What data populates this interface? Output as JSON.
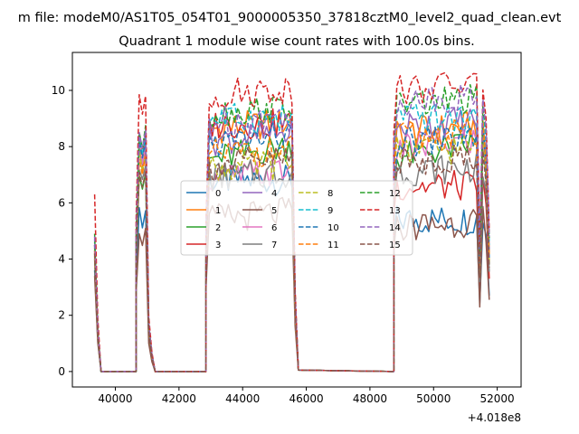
{
  "suptitle": "m file: modeM0/AS1T05_054T01_9000005350_37818cztM0_level2_quad_clean.evt",
  "chart_data": {
    "type": "line",
    "title": "Quadrant 1 module wise count rates with 100.0s bins.",
    "xlabel": "",
    "ylabel": "",
    "x_offset_label": "+4.018e8",
    "xlim": [
      38650,
      52750
    ],
    "ylim": [
      -0.55,
      11.35
    ],
    "xticks": [
      40000,
      42000,
      44000,
      46000,
      48000,
      50000,
      52000
    ],
    "yticks": [
      0,
      2,
      4,
      6,
      8,
      10
    ],
    "grid": false,
    "legend": {
      "placement": "center",
      "ncol": 4
    },
    "x_segments": [
      [
        39350,
        39450,
        39550
      ],
      [
        40650,
        40750,
        40850,
        40950,
        41050,
        41150
      ],
      [
        42850,
        42950,
        43050,
        43150,
        43250,
        43350,
        43450,
        43550,
        43650,
        43750,
        43850,
        43950,
        44050,
        44150,
        44250,
        44350,
        44450,
        44550,
        44650,
        44750,
        44850,
        44950,
        45050,
        45150,
        45250,
        45350,
        45450,
        45550,
        45650
      ],
      [
        48750,
        48850,
        48950,
        49050,
        49150,
        49250,
        49350,
        49450,
        49550,
        49650,
        49750,
        49850,
        49950,
        50050,
        50150,
        50250,
        50350,
        50450,
        50550,
        50650,
        50750,
        50850,
        50950,
        51050,
        51150,
        51250,
        51350,
        51450,
        51550,
        51650,
        51750
      ]
    ],
    "series": [
      {
        "name": "0",
        "color": "#1f77b4",
        "dash": "solid",
        "levels": [
          3.6,
          5.7,
          6.8,
          5.4
        ],
        "seg3_rise": 0.0
      },
      {
        "name": "1",
        "color": "#ff7f0e",
        "dash": "solid",
        "levels": [
          4.2,
          7.9,
          8.6,
          8.5
        ],
        "seg3_rise": 0.3
      },
      {
        "name": "2",
        "color": "#2ca02c",
        "dash": "solid",
        "levels": [
          4.0,
          7.1,
          7.5,
          7.6
        ],
        "seg3_rise": 0.6
      },
      {
        "name": "3",
        "color": "#d62728",
        "dash": "solid",
        "levels": [
          4.5,
          8.3,
          8.8,
          6.6
        ],
        "seg3_rise": 0.0
      },
      {
        "name": "4",
        "color": "#9467bd",
        "dash": "solid",
        "levels": [
          4.3,
          8.0,
          8.2,
          8.7
        ],
        "seg3_rise": 0.3
      },
      {
        "name": "5",
        "color": "#8c564b",
        "dash": "solid",
        "levels": [
          3.4,
          5.0,
          5.4,
          5.1
        ],
        "seg3_rise": 0.3
      },
      {
        "name": "6",
        "color": "#e377c2",
        "dash": "solid",
        "levels": [
          4.6,
          8.2,
          6.8,
          7.9
        ],
        "seg3_rise": 0.4
      },
      {
        "name": "7",
        "color": "#7f7f7f",
        "dash": "solid",
        "levels": [
          4.1,
          7.3,
          6.9,
          7.1
        ],
        "seg3_rise": 0.2
      },
      {
        "name": "8",
        "color": "#bcbd22",
        "dash": "dashed",
        "levels": [
          4.4,
          7.8,
          7.2,
          7.8
        ],
        "seg3_rise": 0.2
      },
      {
        "name": "9",
        "color": "#17becf",
        "dash": "dashed",
        "levels": [
          4.7,
          8.4,
          9.0,
          9.0
        ],
        "seg3_rise": 0.0
      },
      {
        "name": "10",
        "color": "#1f77b4",
        "dash": "dashed",
        "levels": [
          4.5,
          8.1,
          8.1,
          8.1
        ],
        "seg3_rise": 0.3
      },
      {
        "name": "11",
        "color": "#ff7f0e",
        "dash": "dashed",
        "levels": [
          4.3,
          7.7,
          7.7,
          8.3
        ],
        "seg3_rise": 0.2
      },
      {
        "name": "12",
        "color": "#2ca02c",
        "dash": "dashed",
        "levels": [
          4.9,
          8.6,
          9.2,
          9.5
        ],
        "seg3_rise": 0.2
      },
      {
        "name": "13",
        "color": "#d62728",
        "dash": "dashed",
        "levels": [
          6.3,
          9.8,
          9.8,
          10.0
        ],
        "seg3_rise": 0.3
      },
      {
        "name": "14",
        "color": "#9467bd",
        "dash": "dashed",
        "levels": [
          4.8,
          8.5,
          8.9,
          9.6
        ],
        "seg3_rise": 0.2
      },
      {
        "name": "15",
        "color": "#8c564b",
        "dash": "dashed",
        "levels": [
          4.2,
          7.2,
          7.3,
          7.4
        ],
        "seg3_rise": 0.3
      }
    ]
  }
}
